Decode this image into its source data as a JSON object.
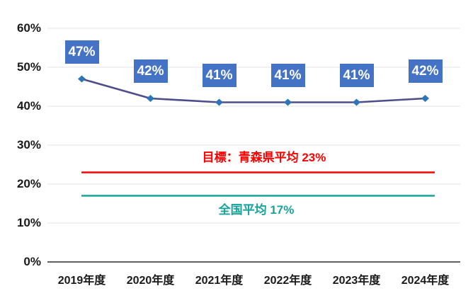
{
  "chart_data": {
    "type": "line",
    "title": "",
    "xlabel": "",
    "ylabel": "",
    "categories": [
      "2019年度",
      "2020年度",
      "2021年度",
      "2022年度",
      "2023年度",
      "2024年度"
    ],
    "series": [
      {
        "values": [
          47,
          42,
          41,
          41,
          41,
          42
        ],
        "data_labels": [
          "47%",
          "42%",
          "41%",
          "41%",
          "41%",
          "42%"
        ]
      }
    ],
    "reference_lines": [
      {
        "label": "目標：青森県平均 23%",
        "value": 23
      },
      {
        "label": "全国平均 17%",
        "value": 17
      }
    ],
    "ylim": [
      0,
      60
    ],
    "ytick_step": 10,
    "ytick_labels": [
      "0%",
      "10%",
      "20%",
      "30%",
      "40%",
      "50%",
      "60%"
    ],
    "grid": true,
    "legend": "none",
    "marker": "diamond"
  },
  "colors": {
    "series_line": "#4C4D8B",
    "marker": "#2E75B6",
    "label_bg": "#4472C4",
    "label_text": "#FFFFFF",
    "target_red": "#FF0000",
    "national_teal": "#17A29A",
    "gridline": "#E3E3E3",
    "axis_line": "#2B2B2B",
    "axis_text": "#1A1A1A"
  }
}
